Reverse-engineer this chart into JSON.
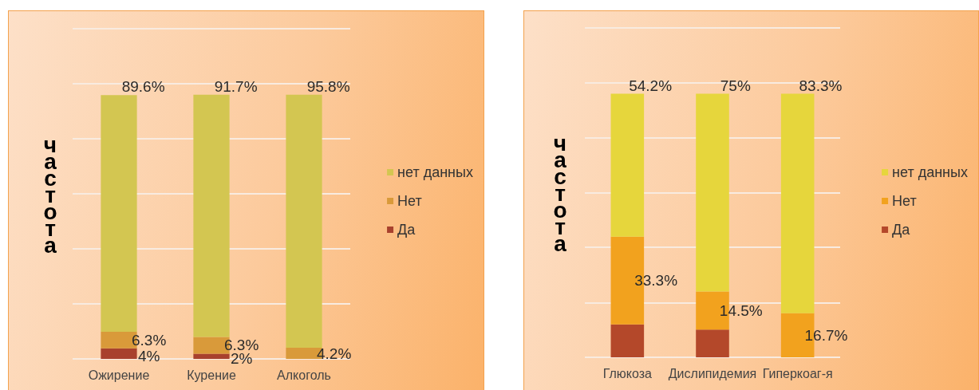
{
  "chart_data": [
    {
      "type": "bar",
      "stacked": true,
      "categories": [
        "Ожирение",
        "Курение",
        "Алкоголь"
      ],
      "ylabel": "частота",
      "series": [
        {
          "name": "Да",
          "color": "#a8412d",
          "values": [
            4,
            2,
            0
          ],
          "value_labels": [
            "4%",
            "2%",
            null
          ]
        },
        {
          "name": "Нет",
          "color": "#d99a3a",
          "values": [
            6.3,
            6.3,
            4.2
          ],
          "value_labels": [
            "6.3%",
            "6.3%",
            "4.2%"
          ]
        },
        {
          "name": "нет данных",
          "color": "#d3c651",
          "values": [
            89.6,
            91.7,
            95.8
          ],
          "value_labels": [
            "89.6%",
            "91.7%",
            "95.8%"
          ]
        }
      ],
      "ylim": [
        0,
        125
      ],
      "yticks": [
        {
          "value": 0,
          "label": null
        },
        {
          "value": 20.8,
          "label": null
        },
        {
          "value": 41.7,
          "label": null
        },
        {
          "value": 62.5,
          "label": null
        },
        {
          "value": 83.3,
          "label": null
        },
        {
          "value": 104.2,
          "label": null
        },
        {
          "value": 125,
          "label": null
        }
      ],
      "grid": "y",
      "legend": "right",
      "tick_labels": "x"
    },
    {
      "type": "bar",
      "stacked": true,
      "categories": [
        "Глюкоза",
        "Дислипидемия",
        "Гиперкоаг-я"
      ],
      "ylabel": "частота",
      "series": [
        {
          "name": "Да",
          "color": "#b4482a",
          "values": [
            12.5,
            10.5,
            0
          ]
        },
        {
          "name": "Нет",
          "color": "#f2a21e",
          "values": [
            33.3,
            14.5,
            16.7
          ],
          "value_labels": [
            "33.3%",
            "14.5%",
            "16.7%"
          ]
        },
        {
          "name": "нет данных",
          "color": "#e6d63c",
          "values": [
            54.2,
            75,
            83.3
          ],
          "value_labels": [
            "54.2%",
            "75%",
            "83.3%"
          ]
        }
      ],
      "ylim": [
        0,
        125
      ],
      "yticks": [
        {
          "value": 0,
          "label": null
        },
        {
          "value": 20.8,
          "label": null
        },
        {
          "value": 41.7,
          "label": null
        },
        {
          "value": 62.5,
          "label": null
        },
        {
          "value": 83.3,
          "label": null
        },
        {
          "value": 104.2,
          "label": null
        },
        {
          "value": 125,
          "label": null
        }
      ],
      "grid": "y",
      "legend": "right",
      "tick_labels": "x"
    }
  ]
}
